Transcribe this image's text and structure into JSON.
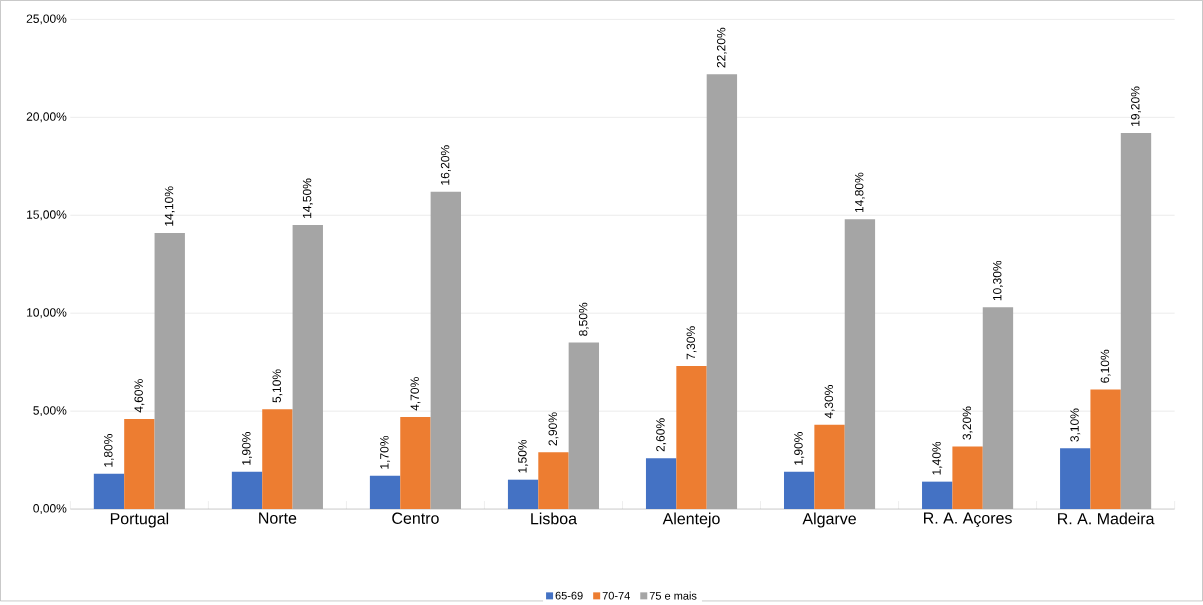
{
  "chart_data": {
    "type": "bar",
    "categories": [
      "Portugal",
      "Norte",
      "Centro",
      "Lisboa",
      "Alentejo",
      "Algarve",
      "R. A. Açores",
      "R. A. Madeira"
    ],
    "series": [
      {
        "name": "65-69",
        "color": "#4472c4",
        "values": [
          1.8,
          1.9,
          1.7,
          1.5,
          2.6,
          1.9,
          1.4,
          3.1
        ],
        "value_labels": [
          "1,80%",
          "1,90%",
          "1,70%",
          "1,50%",
          "2,60%",
          "1,90%",
          "1,40%",
          "3,10%"
        ]
      },
      {
        "name": "70-74",
        "color": "#ed7d31",
        "values": [
          4.6,
          5.1,
          4.7,
          2.9,
          7.3,
          4.3,
          3.2,
          6.1
        ],
        "value_labels": [
          "4,60%",
          "5,10%",
          "4,70%",
          "2,90%",
          "7,30%",
          "4,30%",
          "3,20%",
          "6,10%"
        ]
      },
      {
        "name": "75 e mais",
        "color": "#a5a5a5",
        "values": [
          14.1,
          14.5,
          16.2,
          8.5,
          22.2,
          14.8,
          10.3,
          19.2
        ],
        "value_labels": [
          "14,10%",
          "14,50%",
          "16,20%",
          "8,50%",
          "22,20%",
          "14,80%",
          "10,30%",
          "19,20%"
        ]
      }
    ],
    "ylim": [
      0,
      25
    ],
    "yticks": [
      {
        "value": 0,
        "label": "0,00%"
      },
      {
        "value": 5,
        "label": "5,00%"
      },
      {
        "value": 10,
        "label": "10,00%"
      },
      {
        "value": 15,
        "label": "15,00%"
      },
      {
        "value": 20,
        "label": "20,00%"
      },
      {
        "value": 25,
        "label": "25,00%"
      }
    ],
    "grid": "y",
    "legend": "bottom"
  }
}
